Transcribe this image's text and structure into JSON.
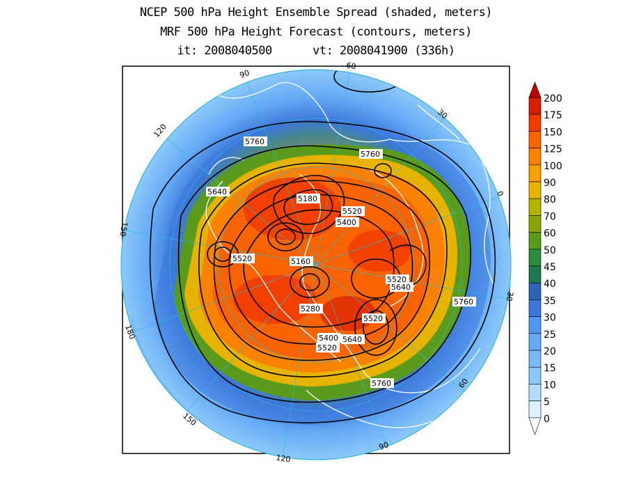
{
  "titles": {
    "line1": "NCEP 500 hPa Height Ensemble Spread (shaded, meters)",
    "line2": "MRF 500 hPa Height Forecast (contours, meters)",
    "line3": "it: 2008040500      vt: 2008041900 (336h)"
  },
  "colorbar": {
    "levels": [
      "200",
      "175",
      "150",
      "125",
      "100",
      "90",
      "80",
      "70",
      "60",
      "50",
      "45",
      "40",
      "35",
      "30",
      "25",
      "20",
      "15",
      "10",
      "5",
      "0"
    ],
    "colors": [
      "#c00000",
      "#d81e00",
      "#f03c00",
      "#fa6400",
      "#fa8200",
      "#f5a000",
      "#e6b400",
      "#b4b400",
      "#87a500",
      "#5a9b1e",
      "#2d8c3c",
      "#1e7850",
      "#2d64b4",
      "#3c78dc",
      "#5096f0",
      "#64aaf5",
      "#78b9fa",
      "#8cc8fa",
      "#b4dcff",
      "#dcf0ff"
    ]
  },
  "longitude_labels": [
    "60",
    "30",
    "0",
    "30",
    "60",
    "90",
    "120",
    "150",
    "180",
    "150",
    "120",
    "90"
  ],
  "contour_labels": [
    "5760",
    "5760",
    "5640",
    "5180",
    "5520",
    "5400",
    "5520",
    "5160",
    "5520",
    "5640",
    "5280",
    "5520",
    "5400",
    "5640",
    "5520",
    "5760",
    "5760"
  ],
  "chart_data": {
    "type": "polar-stereographic map",
    "variable_shaded": "500 hPa height ensemble spread (m)",
    "variable_contour": "500 hPa height forecast (m)",
    "shading_levels_m": [
      0,
      5,
      10,
      15,
      20,
      25,
      30,
      35,
      40,
      45,
      50,
      60,
      70,
      80,
      90,
      100,
      125,
      150,
      175,
      200
    ],
    "contour_values_m": [
      5160,
      5180,
      5280,
      5400,
      5520,
      5640,
      5760
    ]
  }
}
